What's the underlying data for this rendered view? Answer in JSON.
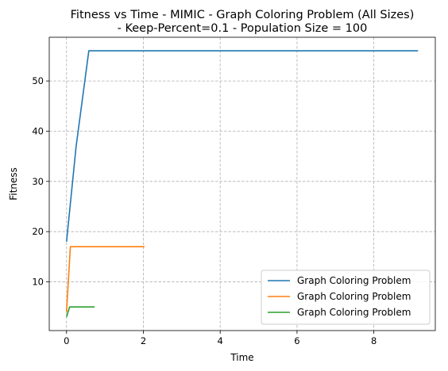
{
  "chart_data": {
    "type": "line",
    "title_line1": "Fitness vs Time - MIMIC - Graph Coloring Problem (All Sizes)",
    "title_line2": "- Keep-Percent=0.1 - Population Size = 100",
    "xlabel": "Time",
    "ylabel": "Fitness",
    "xlim": [
      -0.45,
      9.6
    ],
    "ylim": [
      0.3,
      58.7
    ],
    "xticks": [
      0,
      2,
      4,
      6,
      8
    ],
    "xtick_labels": [
      "0",
      "2",
      "4",
      "6",
      "8"
    ],
    "yticks": [
      10,
      20,
      30,
      40,
      50
    ],
    "ytick_labels": [
      "10",
      "20",
      "30",
      "40",
      "50"
    ],
    "grid": true,
    "legend_position": "lower-right",
    "series": [
      {
        "name": "Graph Coloring Problem",
        "color": "#1f77b4",
        "x": [
          0,
          0.25,
          0.58,
          9.15
        ],
        "y": [
          18,
          37,
          56,
          56
        ]
      },
      {
        "name": "Graph Coloring Problem",
        "color": "#ff7f0e",
        "x": [
          0,
          0.1,
          2.03
        ],
        "y": [
          4,
          17,
          17
        ]
      },
      {
        "name": "Graph Coloring Problem",
        "color": "#2ca02c",
        "x": [
          0,
          0.08,
          0.73
        ],
        "y": [
          3,
          5,
          5
        ]
      }
    ]
  }
}
